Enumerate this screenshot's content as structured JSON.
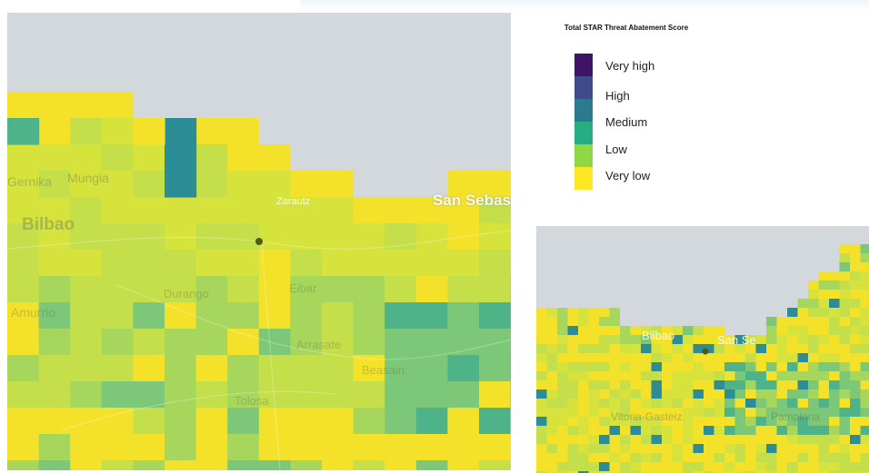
{
  "legend": {
    "title": "Total STAR Threat Abatement Score",
    "items": [
      {
        "label": "Very high",
        "color": "#3f1466"
      },
      {
        "label": "High",
        "color": "#3e4c8a"
      },
      {
        "label": "Medium",
        "color": "#2a7b8e"
      },
      {
        "label": "Low",
        "color": "#27ad81"
      },
      {
        "label": "Very low",
        "color": "#8fd744"
      },
      {
        "color": "#fde725"
      }
    ]
  },
  "colors": {
    "sea": "#d2d8dc",
    "scale": [
      "#f4e22a",
      "#d6e33c",
      "#c4df4a",
      "#a6d65c",
      "#7cc878",
      "#4fb38a",
      "#2d8d96",
      "#3b5e9c"
    ]
  },
  "main_map": {
    "places": {
      "bilbao": "Bilbao",
      "san_sebastian": "San Sebas",
      "zarautz": "Zarautz",
      "mungia": "Mungia",
      "gernika": "Gernika",
      "durango": "Durango",
      "eibar": "Eibar",
      "amurrio": "Amurrio",
      "arrasate": "Arrasate",
      "beasain": "Beasain",
      "tolosa": "Tolosa"
    }
  },
  "inset_map": {
    "places": {
      "bilbao": "Bilbao",
      "san_sebastian": "San Se",
      "vitoria": "Vitoria-Gasteiz",
      "pamplona": "Pamplona"
    }
  }
}
